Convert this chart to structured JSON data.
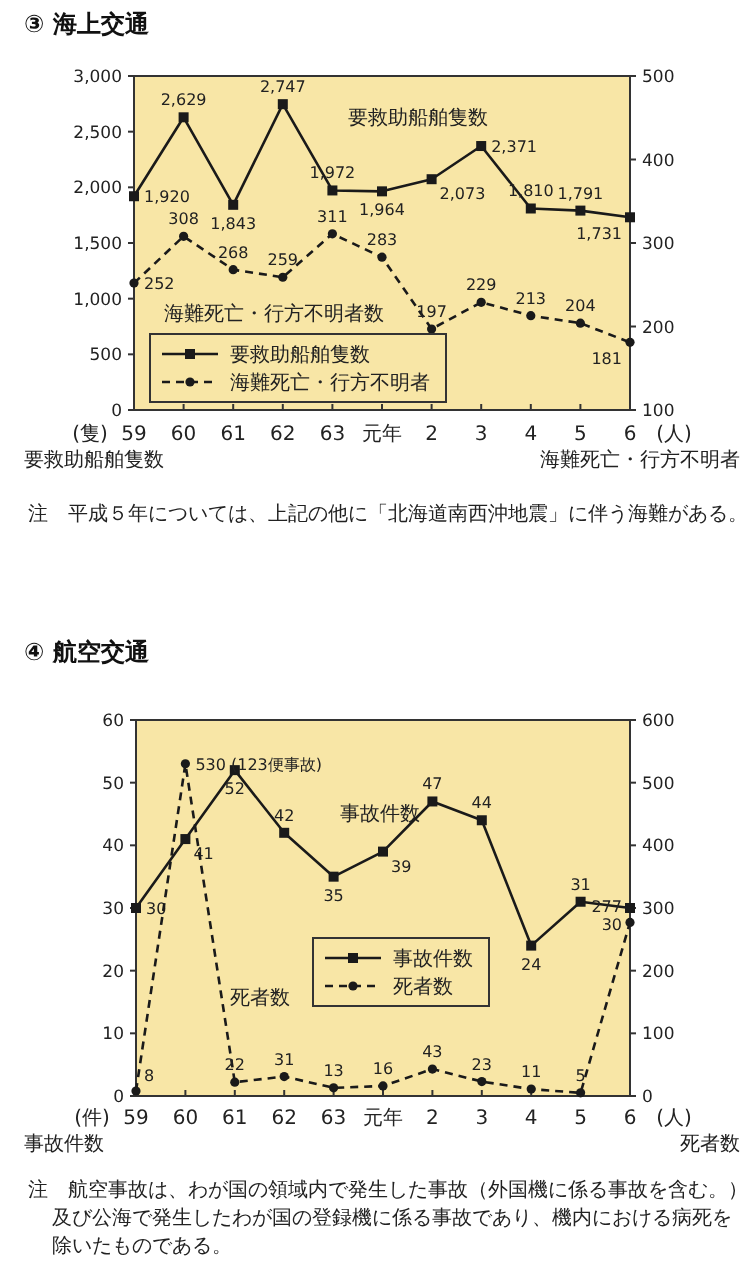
{
  "chart_data": [
    {
      "type": "line",
      "title": "③ 海上交通",
      "categories": [
        "59",
        "60",
        "61",
        "62",
        "63",
        "元年",
        "2",
        "3",
        "4",
        "5",
        "6"
      ],
      "series": [
        {
          "name": "要救助船舶隻数",
          "color": "#1a1a1a",
          "marker": "square",
          "line_style": "solid",
          "values": [
            1920,
            2629,
            1843,
            2747,
            1972,
            1964,
            2073,
            2371,
            1810,
            1791,
            1731
          ],
          "value_labels": [
            "1,920",
            "2,629",
            "1,843",
            "2,747",
            "1,972",
            "1,964",
            "2,073",
            "2,371",
            "1,810",
            "1,791",
            "1,731"
          ]
        },
        {
          "name": "海難死亡・行方不明者",
          "color": "#1a1a1a",
          "marker": "circle",
          "line_style": "dashed",
          "axis": "y2",
          "values": [
            252,
            308,
            268,
            259,
            311,
            283,
            197,
            229,
            213,
            204,
            181
          ],
          "value_labels": [
            "252",
            "308",
            "268",
            "259",
            "311",
            "283",
            "197",
            "229",
            "213",
            "204",
            "181"
          ]
        }
      ],
      "ylim": [
        0,
        3000
      ],
      "yticks": [
        0,
        500,
        {
          "value": 1000,
          "label": "1,000"
        },
        {
          "value": 1500,
          "label": "1,500"
        },
        {
          "value": 2000,
          "label": "2,000"
        },
        {
          "value": 2500,
          "label": "2,500"
        },
        {
          "value": 3000,
          "label": "3,000"
        }
      ],
      "y2lim": [
        100,
        500
      ],
      "y2ticks": [
        100,
        200,
        300,
        400,
        500
      ],
      "ylabel": "(隻)",
      "y2label": "(人)",
      "legend": "bottom left",
      "annotations": [
        "要救助船舶隻数",
        "海難死亡・行方不明者",
        "要救助船舶隻数",
        "海難死亡・行方不明者数",
        "注　平成５年については、上記の他に「北海道南西沖地震」に伴う海難がある。"
      ]
    },
    {
      "type": "line",
      "title": "④ 航空交通",
      "categories": [
        "59",
        "60",
        "61",
        "62",
        "63",
        "元年",
        "2",
        "3",
        "4",
        "5",
        "6"
      ],
      "series": [
        {
          "name": "事故件数",
          "color": "#1a1a1a",
          "marker": "square",
          "line_style": "solid",
          "values": [
            30,
            41,
            52,
            42,
            35,
            39,
            47,
            44,
            24,
            31,
            30
          ],
          "value_labels": [
            "30",
            "41",
            "52",
            "42",
            "35",
            "39",
            "47",
            "44",
            "24",
            "31",
            "30"
          ]
        },
        {
          "name": "死者数",
          "color": "#1a1a1a",
          "marker": "circle",
          "line_style": "dashed",
          "axis": "y2",
          "values": [
            8,
            530,
            22,
            31,
            13,
            16,
            43,
            23,
            11,
            5,
            277
          ],
          "value_labels": [
            "8",
            "530 (123便事故)",
            "22",
            "31",
            "13",
            "16",
            "43",
            "23",
            "11",
            "5",
            "277"
          ]
        }
      ],
      "ylim": [
        0,
        60
      ],
      "yticks": [
        0,
        10,
        20,
        30,
        40,
        50,
        60
      ],
      "y2lim": [
        0,
        600
      ],
      "y2ticks": [
        0,
        100,
        200,
        300,
        400,
        500,
        600
      ],
      "ylabel": "(件)",
      "y2label": "(人)",
      "legend": "center",
      "annotations": [
        "事故件数",
        "死者数",
        "事故件数",
        "死者数",
        "注　航空事故は、わが国の領域内で発生した事故（外国機に係る事故を含む。）及び公海で発生したわが国の登録機に係る事故であり、機内における病死を除いたものである。"
      ]
    }
  ]
}
